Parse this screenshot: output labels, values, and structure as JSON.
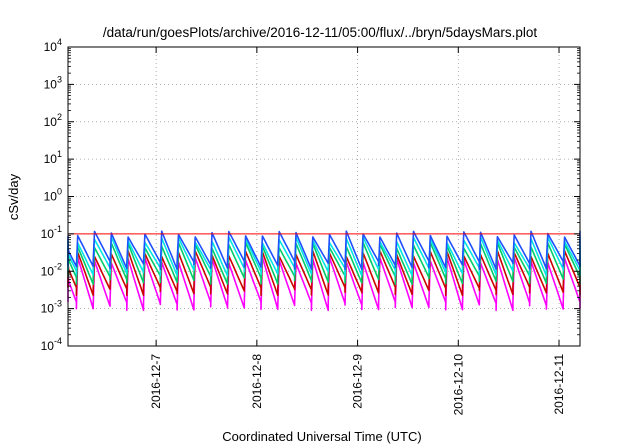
{
  "chart_data": {
    "type": "line",
    "title": "/data/run/goesPlots/archive/2016-12-11/05:00/flux/../bryn/5daysMars.plot",
    "xlabel": "Coordinated Universal Time (UTC)",
    "ylabel": "cSv/day",
    "yscale": "log",
    "ylim": [
      0.0001,
      10000
    ],
    "y_ticks": [
      {
        "exp": "-4",
        "value": 0.0001
      },
      {
        "exp": "-3",
        "value": 0.001
      },
      {
        "exp": "-2",
        "value": 0.01
      },
      {
        "exp": "-1",
        "value": 0.1
      },
      {
        "exp": "0",
        "value": 1
      },
      {
        "exp": "1",
        "value": 10
      },
      {
        "exp": "2",
        "value": 100
      },
      {
        "exp": "3",
        "value": 1000
      },
      {
        "exp": "4",
        "value": 10000
      }
    ],
    "y_tick_base": "10",
    "xlim": [
      "2016-12-06 03:00",
      "2016-12-11 05:00"
    ],
    "x_ticks": [
      {
        "label": "2016-12-7",
        "date": "2016-12-07 00:00"
      },
      {
        "label": "2016-12-8",
        "date": "2016-12-08 00:00"
      },
      {
        "label": "2016-12-9",
        "date": "2016-12-09 00:00"
      },
      {
        "label": "2016-12-10",
        "date": "2016-12-10 00:00"
      },
      {
        "label": "2016-12-11",
        "date": "2016-12-11 00:00"
      }
    ],
    "grid": true,
    "legend": "none",
    "reference_line": {
      "value": 0.1,
      "color": "#ff0000"
    },
    "series": [
      {
        "color": "#ff00ff",
        "oscillation_high": 0.02,
        "oscillation_low": 0.0012
      },
      {
        "color": "#cc0000",
        "oscillation_high": 0.03,
        "oscillation_low": 0.003
      },
      {
        "color": "#00cc66",
        "oscillation_high": 0.05,
        "oscillation_low": 0.006
      },
      {
        "color": "#00e5e5",
        "oscillation_high": 0.07,
        "oscillation_low": 0.01
      },
      {
        "color": "#1e50ff",
        "oscillation_high": 0.1,
        "oscillation_low": 0.015
      }
    ],
    "oscillation_period_hours": 4
  }
}
